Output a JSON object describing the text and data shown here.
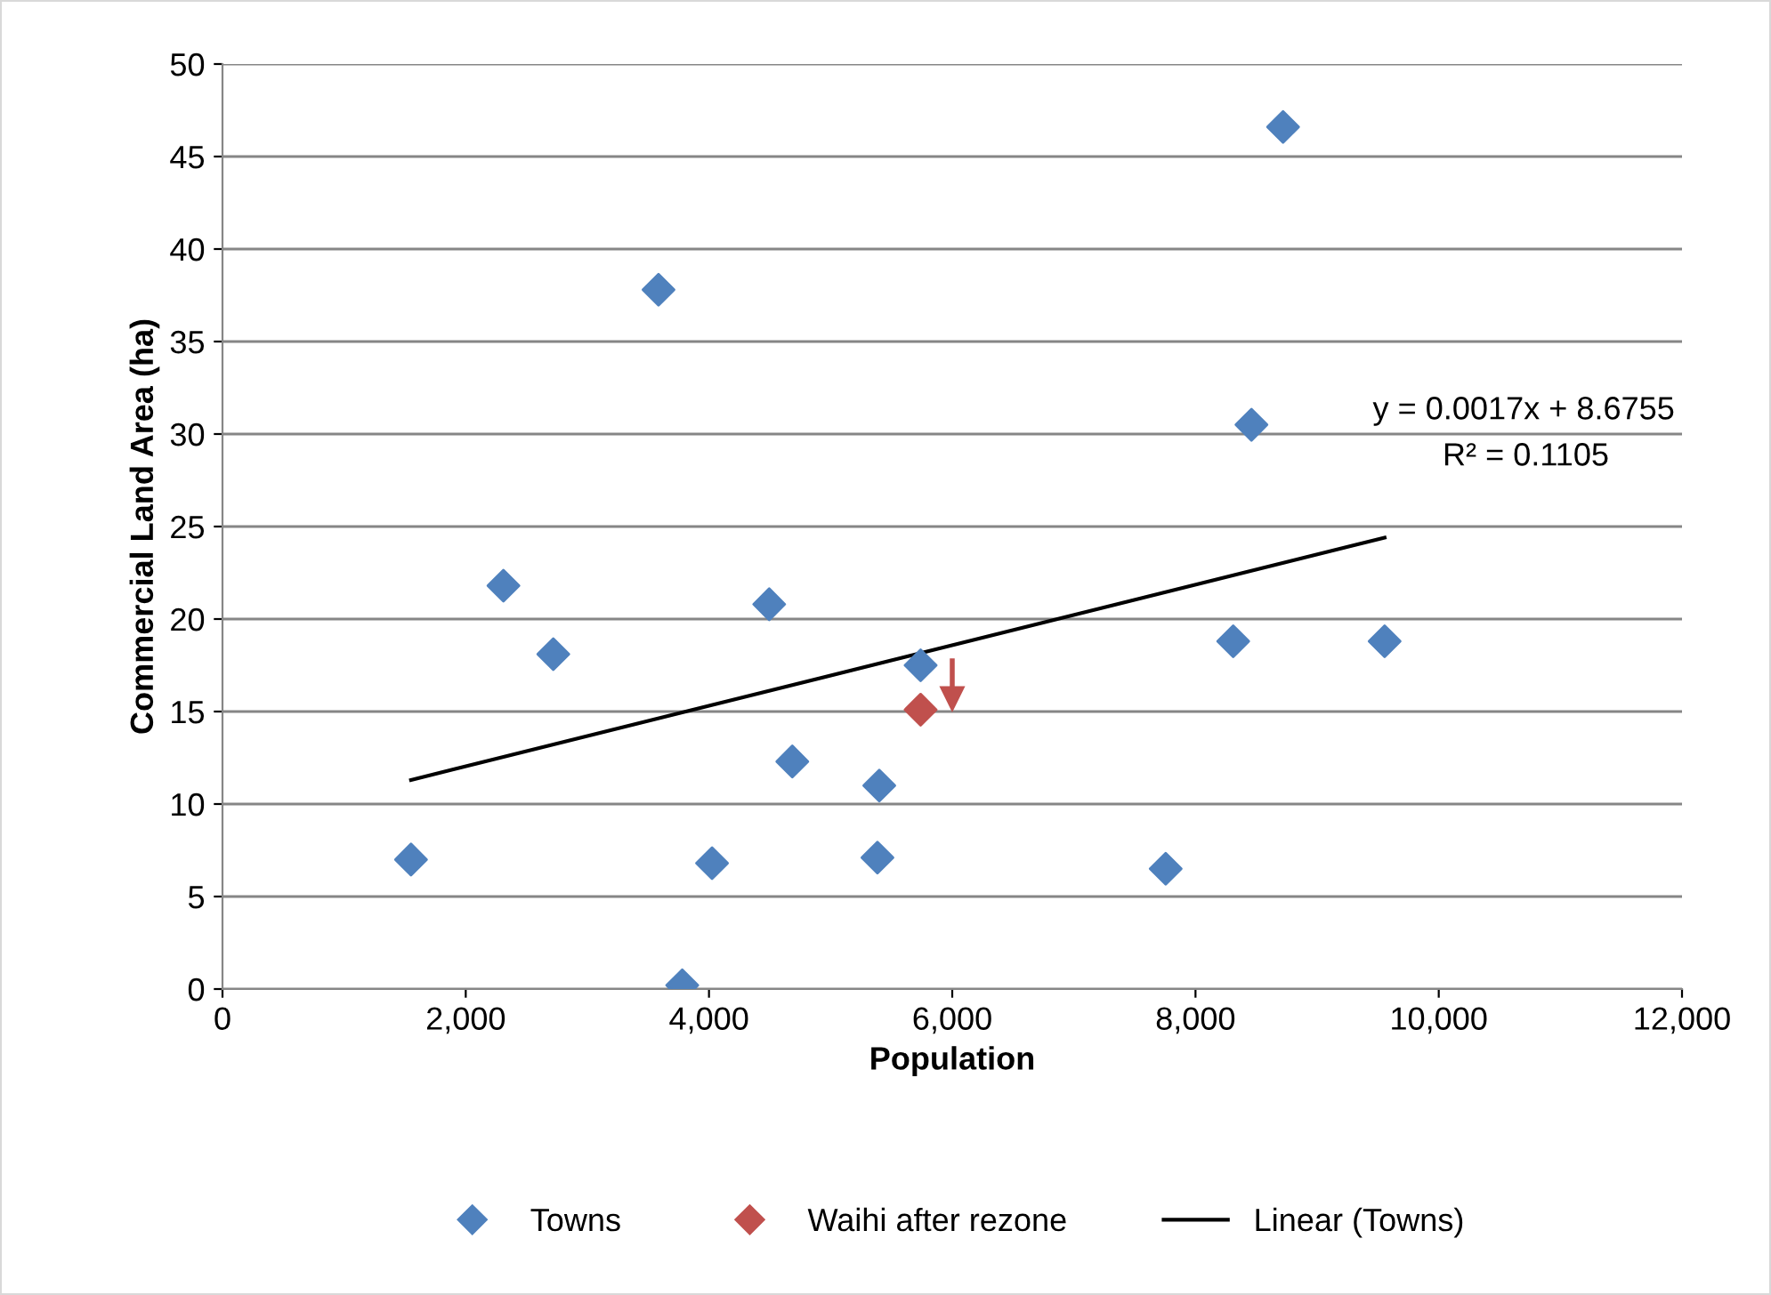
{
  "chart_data": {
    "type": "scatter",
    "xlabel": "Population",
    "ylabel": "Commercial Land Area (ha)",
    "series": [
      {
        "name": "Towns",
        "color": "#4f81bd",
        "marker": "diamond",
        "x": [
          1550,
          2310,
          2720,
          3585,
          3780,
          4025,
          4495,
          4685,
          5400,
          5385,
          5740,
          7755,
          8310,
          8460,
          8720,
          9555
        ],
        "values": [
          7.0,
          21.8,
          18.1,
          37.8,
          0.2,
          6.8,
          20.8,
          12.3,
          11.0,
          7.1,
          17.5,
          6.5,
          18.8,
          30.5,
          46.6,
          18.8
        ]
      },
      {
        "name": "Waihi after rezone",
        "color": "#c0504d",
        "marker": "diamond",
        "x": [
          5740
        ],
        "values": [
          15.1
        ]
      },
      {
        "name": "Linear (Towns)",
        "type": "line",
        "color": "#000000",
        "marker": "none",
        "line_style": "solid",
        "x": [
          1550,
          9555
        ],
        "values": [
          11.3,
          24.4
        ]
      }
    ],
    "annotations": [
      "y = 0.0017x + 8.6755",
      "R² = 0.1105"
    ],
    "xlim": [
      0,
      12000
    ],
    "xticks": [
      {
        "value": 0,
        "label": "0"
      },
      {
        "value": 2000,
        "label": "2,000"
      },
      {
        "value": 4000,
        "label": "4,000"
      },
      {
        "value": 6000,
        "label": "6,000"
      },
      {
        "value": 8000,
        "label": "8,000"
      },
      {
        "value": 10000,
        "label": "10,000"
      },
      {
        "value": 12000,
        "label": "12,000"
      }
    ],
    "ylim": [
      0,
      50
    ],
    "yticks": [
      0,
      5,
      10,
      15,
      20,
      25,
      30,
      35,
      40,
      45,
      50
    ],
    "grid": "y",
    "legend": "bottom"
  }
}
